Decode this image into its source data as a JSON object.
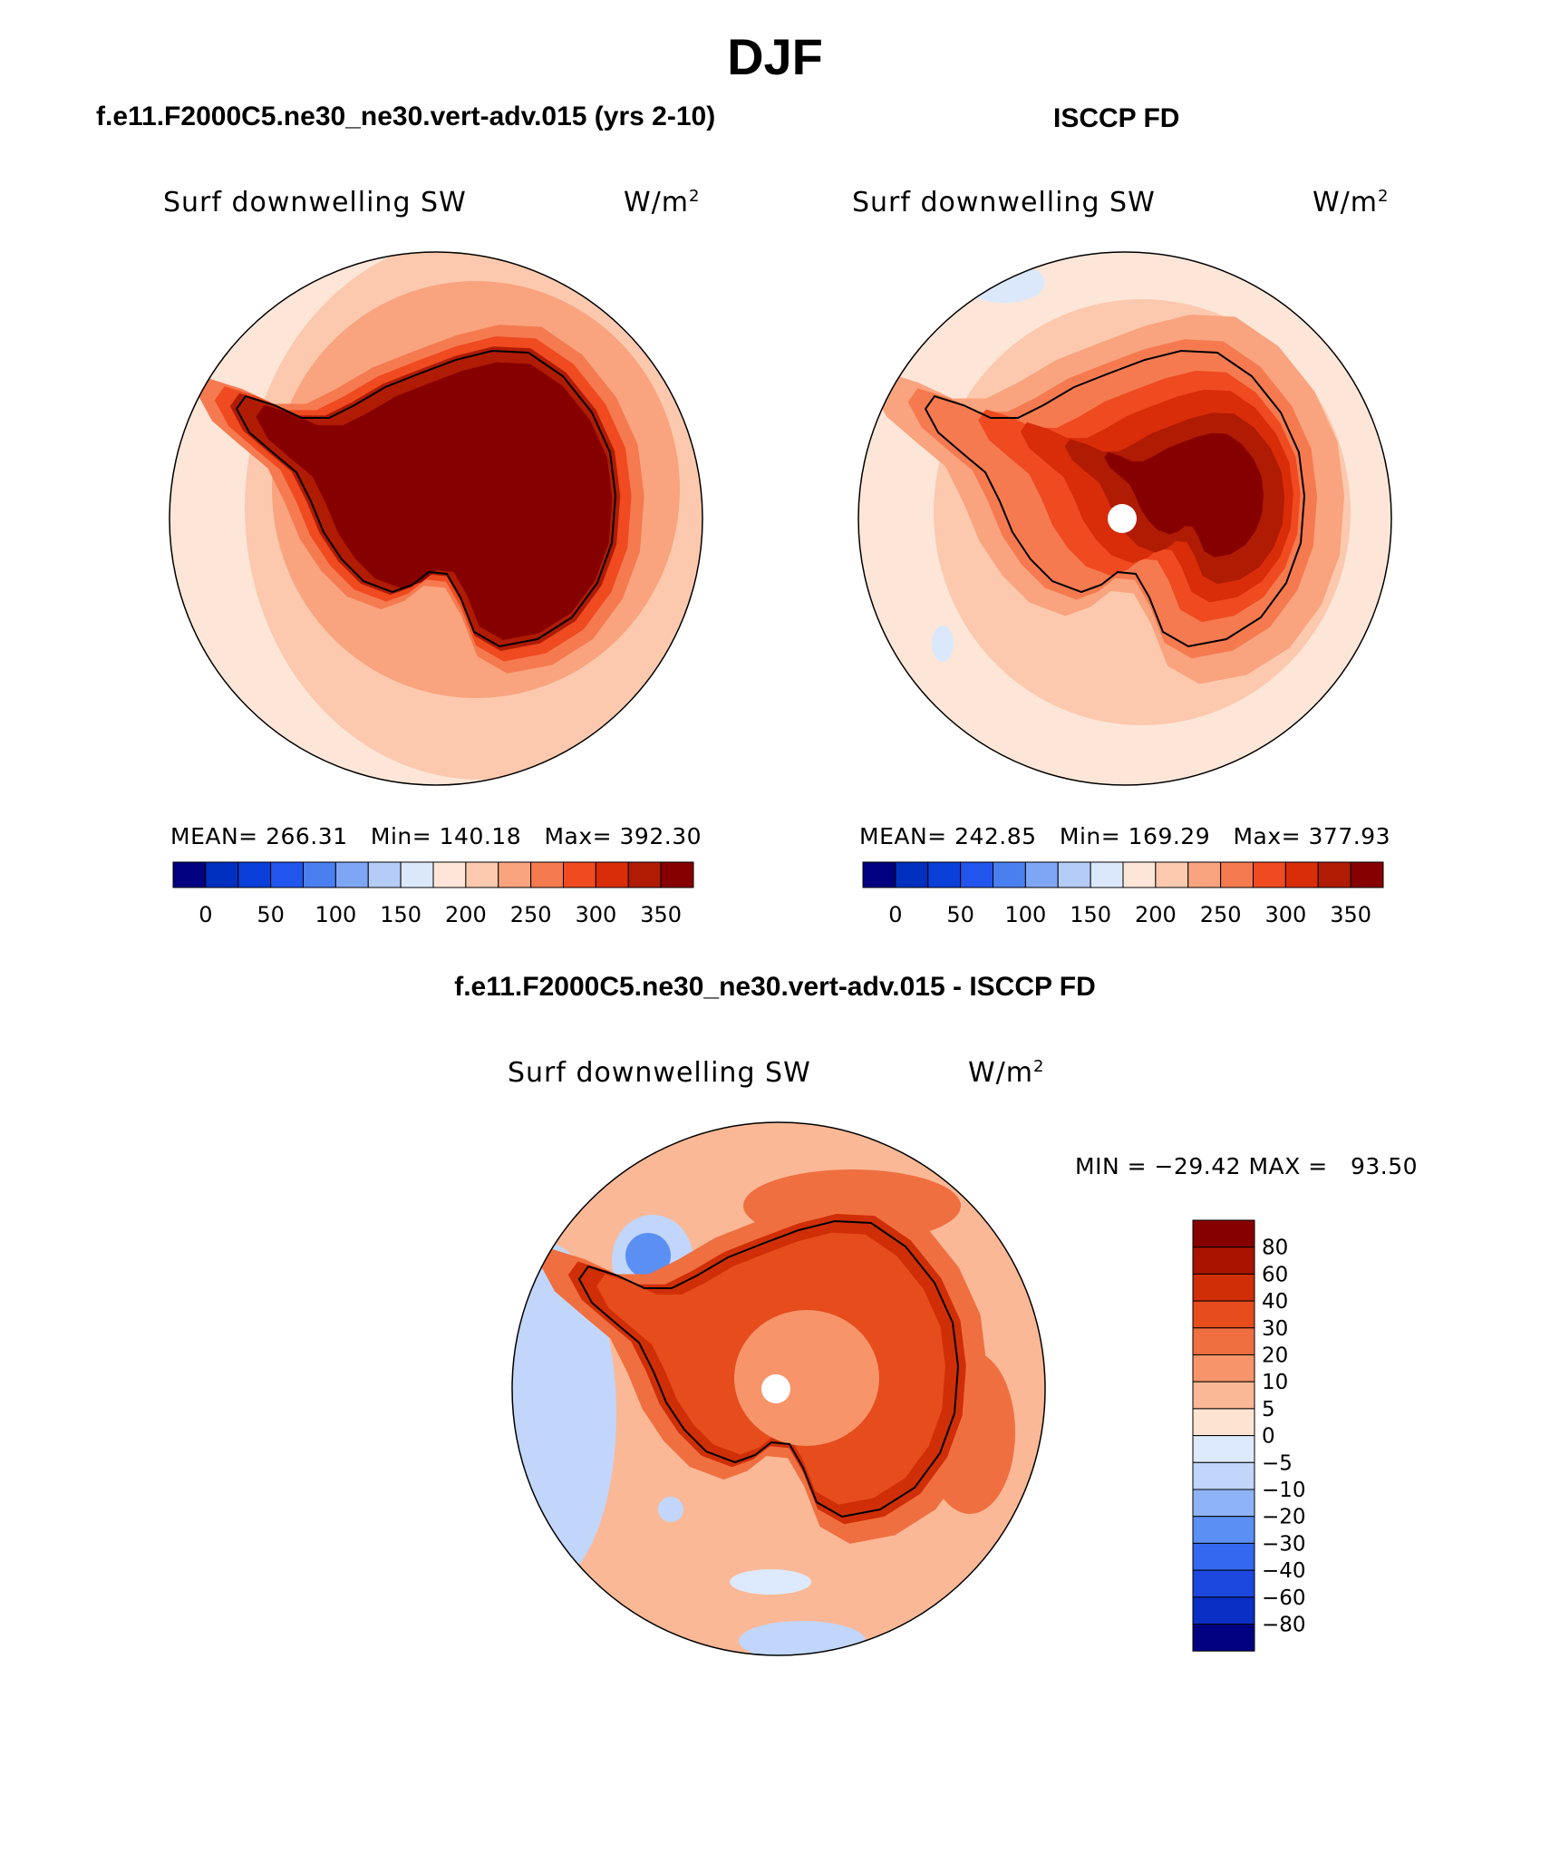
{
  "title": "DJF",
  "colors": {
    "abs_scale": [
      "#000080",
      "#0030c0",
      "#0a3fd9",
      "#2255ee",
      "#4a7ff0",
      "#7fa5f5",
      "#b5ccf8",
      "#dbe8fb",
      "#fde6d8",
      "#fcc9ae",
      "#f9a47e",
      "#f57a50",
      "#ef4a20",
      "#d92c08",
      "#b01b04",
      "#870000"
    ],
    "diff_scale": [
      "#000080",
      "#0a2fc4",
      "#1c48e0",
      "#3468ee",
      "#5b8ff3",
      "#8fb3f7",
      "#c1d6fa",
      "#dde9fc",
      "#fde3d1",
      "#fbb896",
      "#f7946a",
      "#f06f40",
      "#e64c1c",
      "#d02e06",
      "#a81400",
      "#870000"
    ],
    "land_outline": "#000000",
    "missing": "#ffffff"
  },
  "panels": {
    "model": {
      "case_title": "f.e11.F2000C5.ne30_ne30.vert-adv.015 (yrs 2-10)",
      "variable": "Surf downwelling SW",
      "units_base": "W/m",
      "units_exp": "2",
      "stats": "MEAN= 266.31   Min= 140.18   Max= 392.30"
    },
    "obs": {
      "case_title": "ISCCP FD",
      "variable": "Surf downwelling SW",
      "units_base": "W/m",
      "units_exp": "2",
      "stats": "MEAN= 242.85   Min= 169.29   Max= 377.93"
    },
    "diff": {
      "case_title": "f.e11.F2000C5.ne30_ne30.vert-adv.015 - ISCCP FD",
      "variable": "Surf downwelling SW",
      "units_base": "W/m",
      "units_exp": "2",
      "stats": "MIN = −29.42 MAX =   93.50"
    }
  },
  "colorbars": {
    "abs_labels": [
      "0",
      "50",
      "100",
      "150",
      "200",
      "250",
      "300",
      "350"
    ],
    "diff_labels": [
      "80",
      "60",
      "40",
      "30",
      "20",
      "10",
      "5",
      "0",
      "−5",
      "−10",
      "−20",
      "−30",
      "−40",
      "−60",
      "−80"
    ]
  }
}
